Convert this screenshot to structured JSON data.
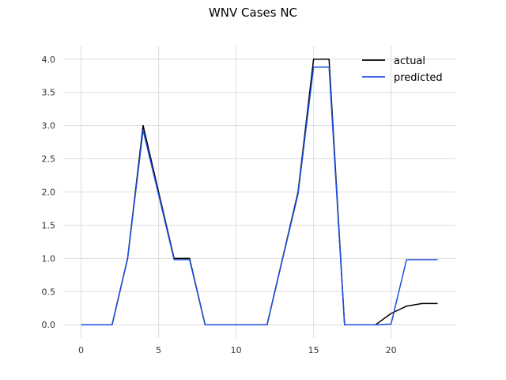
{
  "chart_data": {
    "type": "line",
    "title": "WNV Cases NC",
    "xlabel": "",
    "ylabel": "",
    "xlim": [
      -1.15,
      24.15
    ],
    "ylim": [
      -0.2,
      4.2
    ],
    "xticks": [
      0,
      5,
      10,
      15,
      20
    ],
    "yticks": [
      0.0,
      0.5,
      1.0,
      1.5,
      2.0,
      2.5,
      3.0,
      3.5,
      4.0
    ],
    "ytick_labels": [
      "0.0",
      "0.5",
      "1.0",
      "1.5",
      "2.0",
      "2.5",
      "3.0",
      "3.5",
      "4.0"
    ],
    "grid": true,
    "legend_position": "top-right",
    "x": [
      0,
      1,
      2,
      3,
      4,
      5,
      6,
      7,
      8,
      9,
      10,
      11,
      12,
      13,
      14,
      15,
      16,
      17,
      18,
      19,
      20,
      21,
      22,
      23
    ],
    "series": [
      {
        "name": "actual",
        "color": "#000000",
        "values": [
          0,
          0,
          0,
          1,
          3,
          2,
          1,
          1,
          0,
          0,
          0,
          0,
          0,
          1,
          2,
          4,
          4,
          0,
          0,
          0,
          0.17,
          0.28,
          0.32,
          0.32
        ]
      },
      {
        "name": "predicted",
        "color": "#1a4fe0",
        "values": [
          0,
          0,
          0,
          1,
          2.93,
          1.96,
          0.98,
          0.98,
          0,
          0,
          0,
          0,
          0,
          0.99,
          1.97,
          3.88,
          3.88,
          0,
          0,
          0,
          0.01,
          0.98,
          0.98,
          0.98
        ]
      }
    ]
  }
}
